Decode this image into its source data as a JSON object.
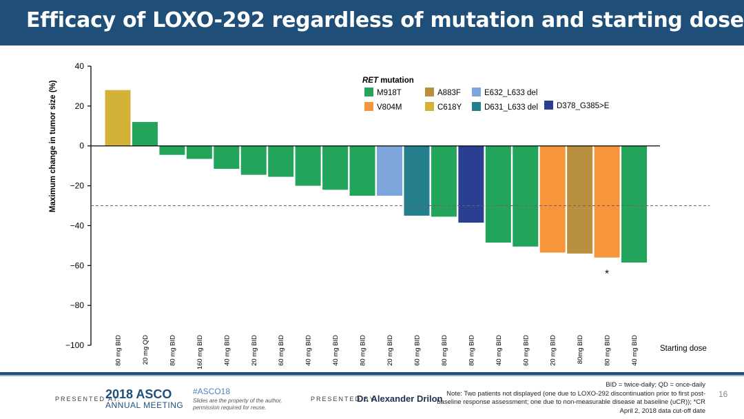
{
  "slide": {
    "title": "Efficacy of LOXO-292 regardless of mutation and starting dose",
    "slide_number": "16"
  },
  "footer": {
    "presented_at_label": "PRESENTED AT:",
    "asco_year_name": "2018 ASCO",
    "asco_meeting": "ANNUAL MEETING",
    "hashtag": "#ASCO18",
    "rights_line1": "Slides are the property of the author,",
    "rights_line2": "permission required for reuse.",
    "presented_by_label": "PRESENTED BY:",
    "presenter": "Dr. Alexander Drilon",
    "notes": [
      "BID = twice-daily; QD = once-daily",
      "Note: Two patients not displayed (one due to LOXO-292 discontinuation prior to first post-",
      "baseline response assessment; one due to non-measurable disease at baseline (uCR)); *CR",
      "April 2, 2018 data cut-off date"
    ]
  },
  "colors": {
    "title_bar": "#1f4e79",
    "footer_stripe": "#1f4e79",
    "footer_stripe_light": "#9db3cc",
    "reference_line": "#7a5a6a"
  },
  "chart_data": {
    "type": "bar",
    "title": "",
    "ylabel": "Maximum change in tumor size (%)",
    "xlabel": "Starting dose",
    "ylim": [
      -100,
      40
    ],
    "yticks": [
      40,
      20,
      0,
      -20,
      -40,
      -60,
      -80,
      -100
    ],
    "ytick_labels": [
      "40",
      "20",
      "0",
      "−20",
      "−40",
      "−60",
      "−80",
      "−100"
    ],
    "reference_line": -30,
    "grid": false,
    "legend_position": "top-center",
    "legend_title_italic": "RET",
    "legend_title_rest": " mutation",
    "mutations": [
      {
        "name": "M918T",
        "color": "#22a55a"
      },
      {
        "name": "V804M",
        "color": "#f7953a"
      },
      {
        "name": "A883F",
        "color": "#b8903f"
      },
      {
        "name": "C618Y",
        "color": "#d4b23a"
      },
      {
        "name": "E632_L633 del",
        "color": "#7ea6dc"
      },
      {
        "name": "D631_L633 del",
        "color": "#247e8c"
      },
      {
        "name": "D378_G385>E",
        "color": "#2a3f8f"
      }
    ],
    "categories": [
      "80 mg BID",
      "20 mg QD",
      "80 mg BID",
      "160 mg BID",
      "40 mg BID",
      "20 mg BID",
      "60 mg BID",
      "40 mg BID",
      "40 mg BID",
      "80 mg BID",
      "20 mg BID",
      "60 mg BID",
      "80 mg BID",
      "80 mg BID",
      "40 mg BID",
      "60 mg BID",
      "20 mg BID",
      "80mg BID",
      "80 mg BID",
      "40 mg BID"
    ],
    "values": [
      28,
      12,
      -4.5,
      -6.5,
      -11.5,
      -14.5,
      -15.5,
      -20,
      -22,
      -25,
      -25,
      -35,
      -35.5,
      -38.5,
      -48.5,
      -50.5,
      -53.5,
      -54,
      -56,
      -58.5
    ],
    "bar_mutations": [
      "C618Y",
      "M918T",
      "M918T",
      "M918T",
      "M918T",
      "M918T",
      "M918T",
      "M918T",
      "M918T",
      "M918T",
      "E632_L633 del",
      "D631_L633 del",
      "M918T",
      "D378_G385>E",
      "M918T",
      "M918T",
      "V804M",
      "A883F",
      "V804M",
      "M918T"
    ],
    "annotations": [
      {
        "bar_index": 18,
        "text": "*"
      }
    ]
  }
}
